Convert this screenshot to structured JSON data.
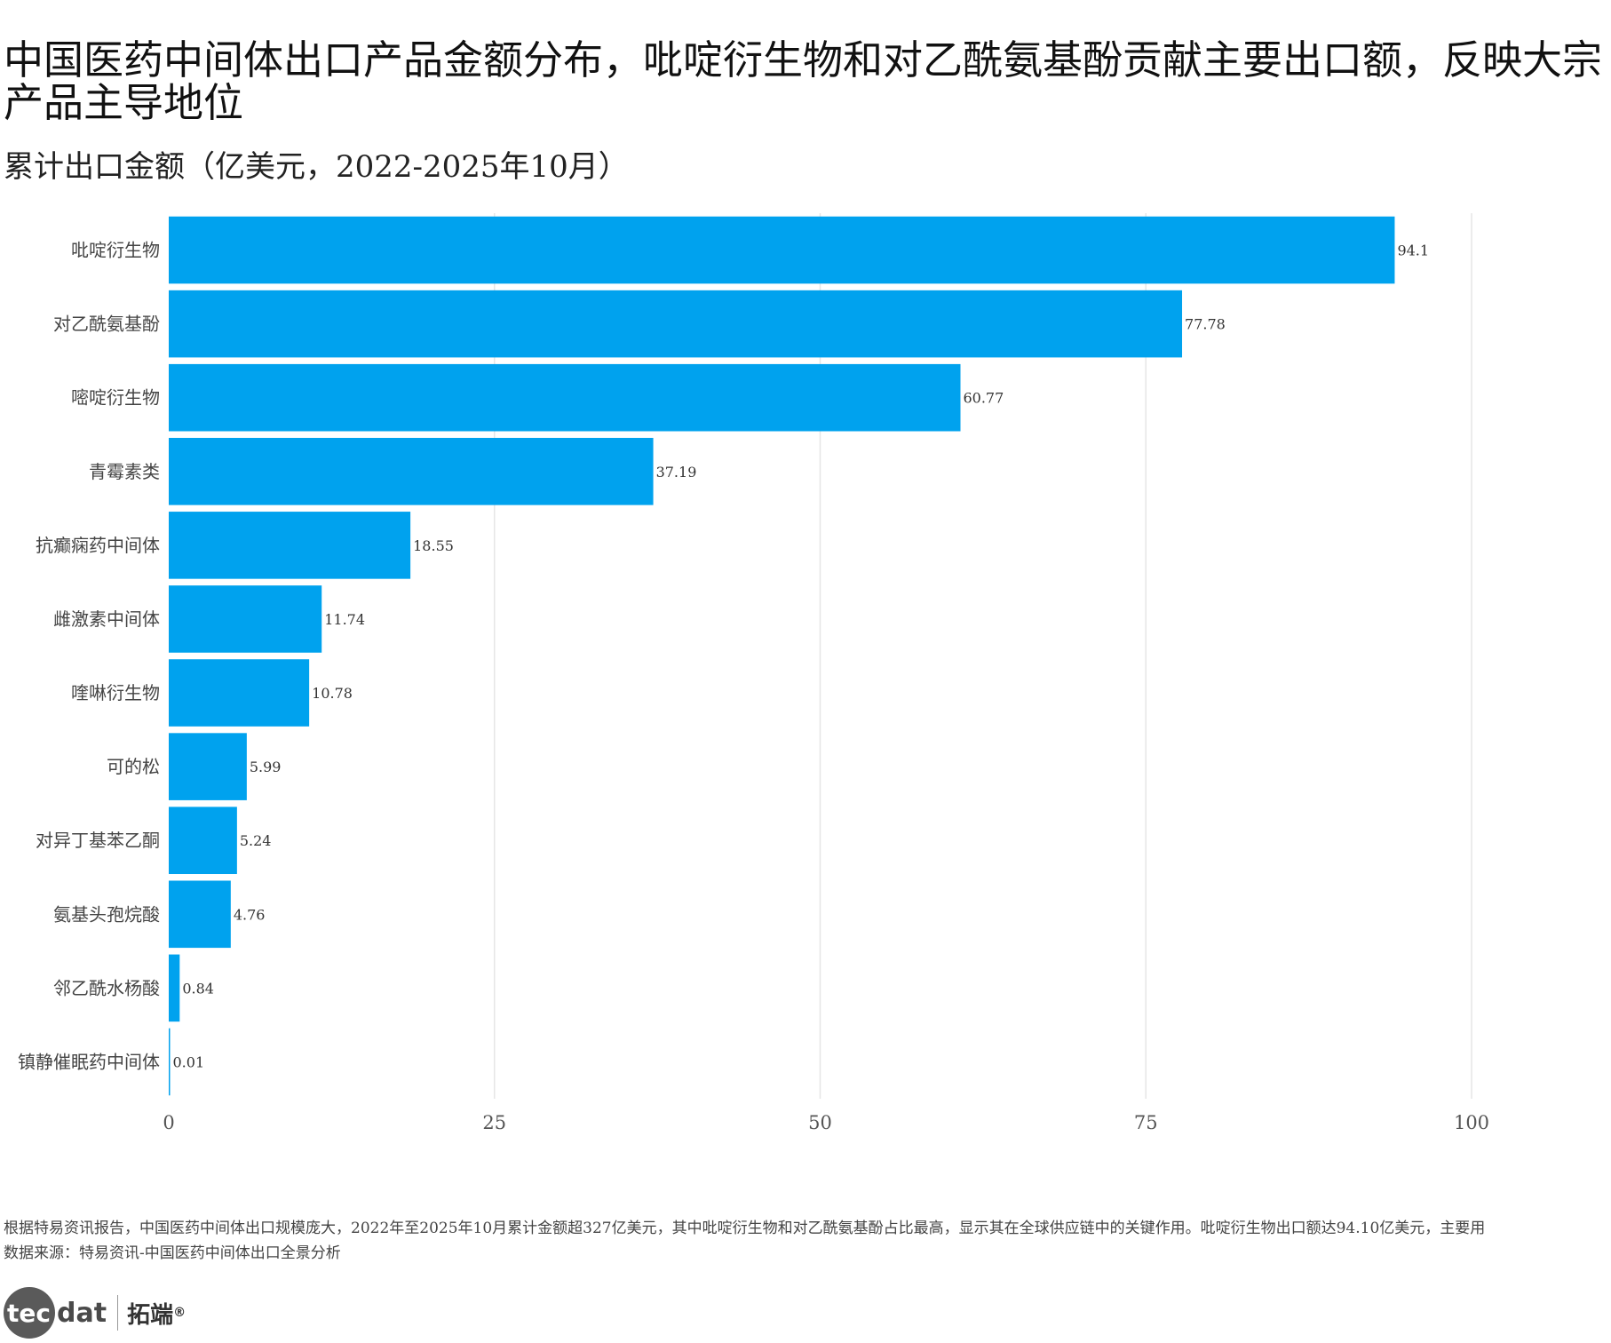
{
  "chart_data": {
    "type": "bar",
    "orientation": "horizontal",
    "title": "中国医药中间体出口产品金额分布，吡啶衍生物和对乙酰氨基酚贡献主要出口额，反映大宗产品主导地位",
    "subtitle": "累计出口金额（亿美元，2022-2025年10月）",
    "categories": [
      "吡啶衍生物",
      "对乙酰氨基酚",
      "嘧啶衍生物",
      "青霉素类",
      "抗癫痫药中间体",
      "雌激素中间体",
      "喹啉衍生物",
      "可的松",
      "对异丁基苯乙酮",
      "氨基头孢烷酸",
      "邻乙酰水杨酸",
      "镇静催眠药中间体"
    ],
    "values": [
      94.1,
      77.78,
      60.77,
      37.19,
      18.55,
      11.74,
      10.78,
      5.99,
      5.24,
      4.76,
      0.84,
      0.01
    ],
    "value_labels": [
      "94.1",
      "77.78",
      "60.77",
      "37.19",
      "18.55",
      "11.74",
      "10.78",
      "5.99",
      "5.24",
      "4.76",
      "0.84",
      "0.01"
    ],
    "xlim": [
      0,
      100
    ],
    "x_ticks": [
      0,
      25,
      50,
      75,
      100
    ],
    "x_tick_labels": [
      "0",
      "25",
      "50",
      "75",
      "100"
    ],
    "xlabel": "",
    "ylabel": "",
    "grid": true,
    "bar_color": "#00A2EE"
  },
  "footer": {
    "note": "根据特易资讯报告，中国医药中间体出口规模庞大，2022年至2025年10月累计金额超327亿美元，其中吡啶衍生物和对乙酰氨基酚占比最高，显示其在全球供应链中的关键作用。吡啶衍生物出口额达94.10亿美元，主要用",
    "source": "数据来源：特易资讯-中国医药中间体出口全景分析"
  },
  "logo": {
    "mark": "tec",
    "rest": "dat",
    "cn": "拓端",
    "reg": "®"
  }
}
